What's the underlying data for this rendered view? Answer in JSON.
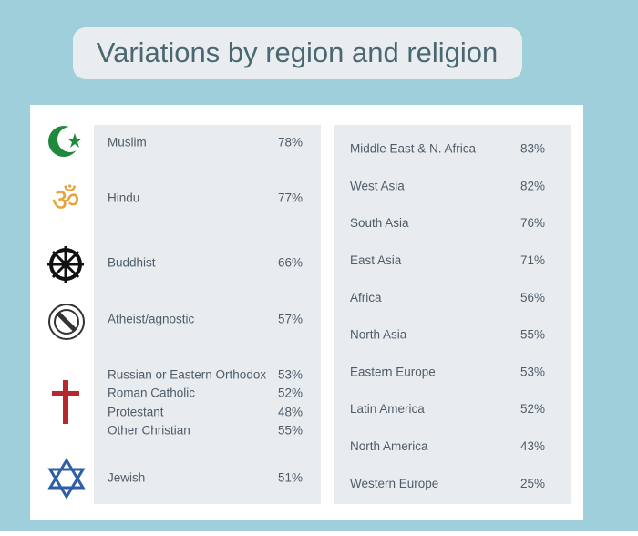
{
  "title": "Variations by region and religion",
  "religions": [
    {
      "label": "Muslim",
      "value": "78%"
    },
    {
      "label": "Hindu",
      "value": "77%"
    },
    {
      "label": "Buddhist",
      "value": "66%"
    },
    {
      "label": "Atheist/agnostic",
      "value": "57%"
    },
    {
      "label": "Russian or Eastern Orthodox",
      "value": "53%"
    },
    {
      "label": "Roman Catholic",
      "value": "52%"
    },
    {
      "label": "Protestant",
      "value": "48%"
    },
    {
      "label": "Other Christian",
      "value": "55%"
    },
    {
      "label": "Jewish",
      "value": "51%"
    }
  ],
  "regions": [
    {
      "label": "Middle East & N. Africa",
      "value": "83%"
    },
    {
      "label": "West Asia",
      "value": "82%"
    },
    {
      "label": "South Asia",
      "value": "76%"
    },
    {
      "label": "East Asia",
      "value": "71%"
    },
    {
      "label": "Africa",
      "value": "56%"
    },
    {
      "label": "North Asia",
      "value": "55%"
    },
    {
      "label": "Eastern Europe",
      "value": "53%"
    },
    {
      "label": "Latin America",
      "value": "52%"
    },
    {
      "label": "North America",
      "value": "43%"
    },
    {
      "label": "Western Europe",
      "value": "25%"
    }
  ]
}
